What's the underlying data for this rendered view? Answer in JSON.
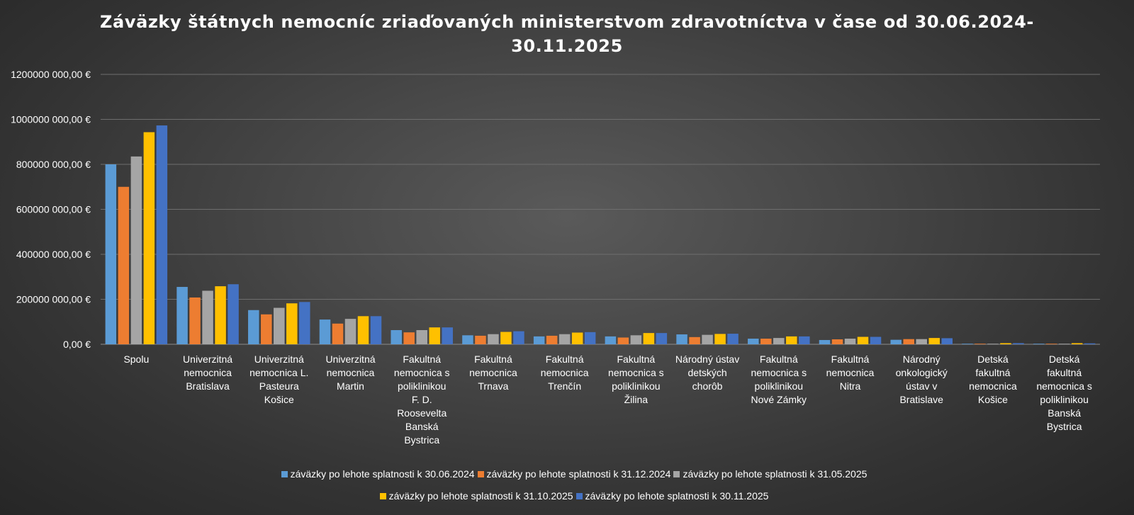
{
  "chart_data": {
    "type": "bar",
    "title_lines": [
      "Záväzky štátnych nemocníc zriaďovaných ministerstvom zdravotníctva v čase od 30.06.2024-",
      "30.11.2025"
    ],
    "categories": [
      [
        "Spolu"
      ],
      [
        "Univerzitná",
        "nemocnica",
        "Bratislava"
      ],
      [
        "Univerzitná",
        "nemocnica L.",
        "Pasteura",
        "Košice"
      ],
      [
        "Univerzitná",
        "nemocnica",
        "Martin"
      ],
      [
        "Fakultná",
        "nemocnica s",
        "poliklinikou",
        "F. D.",
        "Roosevelta",
        "Banská",
        "Bystrica"
      ],
      [
        "Fakultná",
        "nemocnica",
        "Trnava"
      ],
      [
        "Fakultná",
        "nemocnica",
        "Trenčín"
      ],
      [
        "Fakultná",
        "nemocnica s",
        "poliklinikou",
        "Žilina"
      ],
      [
        "Národný ústav",
        "detských",
        "chorôb"
      ],
      [
        "Fakultná",
        "nemocnica s",
        "poliklinikou",
        "Nové Zámky"
      ],
      [
        "Fakultná",
        "nemocnica",
        "Nitra"
      ],
      [
        "Národný",
        "onkologický",
        "ústav v",
        "Bratislave"
      ],
      [
        "Detská",
        "fakultná",
        "nemocnica",
        "Košice"
      ],
      [
        "Detská",
        "fakultná",
        "nemocnica s",
        "poliklinikou",
        "Banská",
        "Bystrica"
      ]
    ],
    "series": [
      {
        "name": "záväzky po lehote splatnosti k 30.06.2024",
        "color": "#5b9bd5",
        "values": [
          800000,
          255000,
          152000,
          110000,
          63000,
          40000,
          35000,
          35000,
          44000,
          25000,
          19000,
          20000,
          2000,
          1500
        ]
      },
      {
        "name": "záväzky po lehote splatnosti k 31.12.2024",
        "color": "#ed7d31",
        "values": [
          700000,
          208000,
          133000,
          92000,
          53000,
          38000,
          38000,
          30000,
          32000,
          25000,
          22000,
          23000,
          2000,
          1500
        ]
      },
      {
        "name": "záväzky po lehote splatnosti k 31.05.2025",
        "color": "#a5a5a5",
        "values": [
          835000,
          238000,
          162000,
          113000,
          63000,
          45000,
          45000,
          40000,
          42000,
          28000,
          25000,
          23000,
          2500,
          2000
        ]
      },
      {
        "name": "záväzky po lehote splatnosti k 31.10.2025",
        "color": "#ffc000",
        "values": [
          943000,
          258000,
          182000,
          125000,
          75000,
          55000,
          52000,
          50000,
          46000,
          35000,
          33000,
          28000,
          5000,
          5000
        ]
      },
      {
        "name": "záväzky po lehote splatnosti k 30.11.2025",
        "color": "#4472c4",
        "values": [
          973000,
          267000,
          188000,
          125000,
          75000,
          58000,
          54000,
          50000,
          47000,
          35000,
          33000,
          27000,
          5000,
          4000
        ]
      }
    ],
    "y_ticks": [
      {
        "value": 0,
        "label": "0,00 €"
      },
      {
        "value": 200000,
        "label": "200000 000,00 €"
      },
      {
        "value": 400000,
        "label": "400000 000,00 €"
      },
      {
        "value": 600000,
        "label": "600000 000,00 €"
      },
      {
        "value": 800000,
        "label": "800000 000,00 €"
      },
      {
        "value": 1000000,
        "label": "1000000 000,00 €"
      },
      {
        "value": 1200000,
        "label": "1200000 000,00 €"
      }
    ],
    "ylim": [
      0,
      1200000
    ],
    "grid": true,
    "legend_position": "bottom",
    "legend_rows": [
      [
        0,
        1,
        2
      ],
      [
        3,
        4
      ]
    ]
  }
}
